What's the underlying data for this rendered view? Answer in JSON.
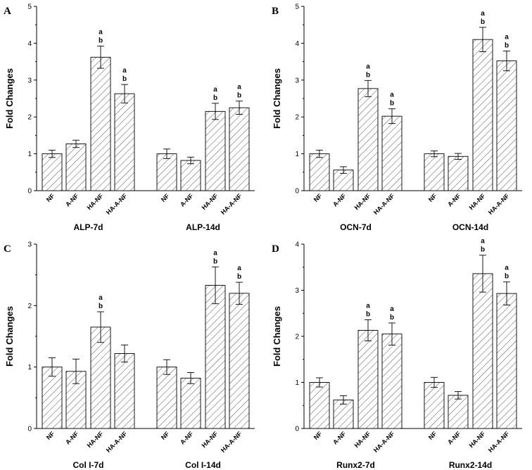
{
  "chart_data": [
    {
      "type": "bar",
      "panel": "A",
      "ylabel": "Fold Changes",
      "ylim": [
        0,
        5
      ],
      "yticks": [
        "0",
        "1",
        "2",
        "3",
        "4",
        "5"
      ],
      "groups": [
        {
          "label": "ALP-7d",
          "bars": [
            {
              "category": "NF",
              "value": 1.0,
              "error": 0.1,
              "sig": []
            },
            {
              "category": "A-NF",
              "value": 1.27,
              "error": 0.1,
              "sig": []
            },
            {
              "category": "HA-NF",
              "value": 3.62,
              "error": 0.3,
              "sig": [
                "a",
                "b"
              ]
            },
            {
              "category": "HA-A-NF",
              "value": 2.63,
              "error": 0.25,
              "sig": [
                "a",
                "b"
              ]
            }
          ]
        },
        {
          "label": "ALP-14d",
          "bars": [
            {
              "category": "NF",
              "value": 1.0,
              "error": 0.13,
              "sig": []
            },
            {
              "category": "A-NF",
              "value": 0.82,
              "error": 0.09,
              "sig": []
            },
            {
              "category": "HA-NF",
              "value": 2.15,
              "error": 0.22,
              "sig": [
                "a",
                "b"
              ]
            },
            {
              "category": "HA-A-NF",
              "value": 2.25,
              "error": 0.18,
              "sig": [
                "a",
                "b"
              ]
            }
          ]
        }
      ]
    },
    {
      "type": "bar",
      "panel": "B",
      "ylabel": "Fold Changes",
      "ylim": [
        0,
        5
      ],
      "yticks": [
        "0",
        "1",
        "2",
        "3",
        "4",
        "5"
      ],
      "groups": [
        {
          "label": "OCN-7d",
          "bars": [
            {
              "category": "NF",
              "value": 1.0,
              "error": 0.1,
              "sig": []
            },
            {
              "category": "A-NF",
              "value": 0.56,
              "error": 0.09,
              "sig": []
            },
            {
              "category": "HA-NF",
              "value": 2.77,
              "error": 0.22,
              "sig": [
                "a",
                "b"
              ]
            },
            {
              "category": "HA-A-NF",
              "value": 2.02,
              "error": 0.2,
              "sig": [
                "a",
                "b"
              ]
            }
          ]
        },
        {
          "label": "OCN-14d",
          "bars": [
            {
              "category": "NF",
              "value": 1.0,
              "error": 0.08,
              "sig": []
            },
            {
              "category": "A-NF",
              "value": 0.93,
              "error": 0.08,
              "sig": []
            },
            {
              "category": "HA-NF",
              "value": 4.1,
              "error": 0.33,
              "sig": [
                "a",
                "b"
              ]
            },
            {
              "category": "HA-A-NF",
              "value": 3.52,
              "error": 0.27,
              "sig": [
                "a",
                "b"
              ]
            }
          ]
        }
      ]
    },
    {
      "type": "bar",
      "panel": "C",
      "ylabel": "Fold Changes",
      "ylim": [
        0,
        3
      ],
      "yticks": [
        "0",
        "1",
        "2",
        "3"
      ],
      "groups": [
        {
          "label": "Col I-7d",
          "bars": [
            {
              "category": "NF",
              "value": 1.0,
              "error": 0.15,
              "sig": []
            },
            {
              "category": "A-NF",
              "value": 0.93,
              "error": 0.2,
              "sig": []
            },
            {
              "category": "HA-NF",
              "value": 1.65,
              "error": 0.25,
              "sig": [
                "a",
                "b"
              ]
            },
            {
              "category": "HA-A-NF",
              "value": 1.22,
              "error": 0.14,
              "sig": []
            }
          ]
        },
        {
          "label": "Col I-14d",
          "bars": [
            {
              "category": "NF",
              "value": 1.0,
              "error": 0.12,
              "sig": []
            },
            {
              "category": "A-NF",
              "value": 0.82,
              "error": 0.09,
              "sig": []
            },
            {
              "category": "HA-NF",
              "value": 2.33,
              "error": 0.3,
              "sig": [
                "a",
                "b"
              ]
            },
            {
              "category": "HA-A-NF",
              "value": 2.2,
              "error": 0.18,
              "sig": [
                "a",
                "b"
              ]
            }
          ]
        }
      ]
    },
    {
      "type": "bar",
      "panel": "D",
      "ylabel": "Fold Changes",
      "ylim": [
        0,
        4
      ],
      "yticks": [
        "0",
        "1",
        "2",
        "3",
        "4"
      ],
      "groups": [
        {
          "label": "Runx2-7d",
          "bars": [
            {
              "category": "NF",
              "value": 1.0,
              "error": 0.1,
              "sig": []
            },
            {
              "category": "A-NF",
              "value": 0.62,
              "error": 0.09,
              "sig": []
            },
            {
              "category": "HA-NF",
              "value": 2.13,
              "error": 0.23,
              "sig": [
                "a",
                "b"
              ]
            },
            {
              "category": "HA-A-NF",
              "value": 2.05,
              "error": 0.24,
              "sig": [
                "a",
                "b"
              ]
            }
          ]
        },
        {
          "label": "Runx2-14d",
          "bars": [
            {
              "category": "NF",
              "value": 1.0,
              "error": 0.11,
              "sig": []
            },
            {
              "category": "A-NF",
              "value": 0.72,
              "error": 0.08,
              "sig": []
            },
            {
              "category": "HA-NF",
              "value": 3.36,
              "error": 0.4,
              "sig": [
                "a",
                "b"
              ]
            },
            {
              "category": "HA-A-NF",
              "value": 2.93,
              "error": 0.25,
              "sig": [
                "a",
                "b"
              ]
            }
          ]
        }
      ]
    }
  ]
}
